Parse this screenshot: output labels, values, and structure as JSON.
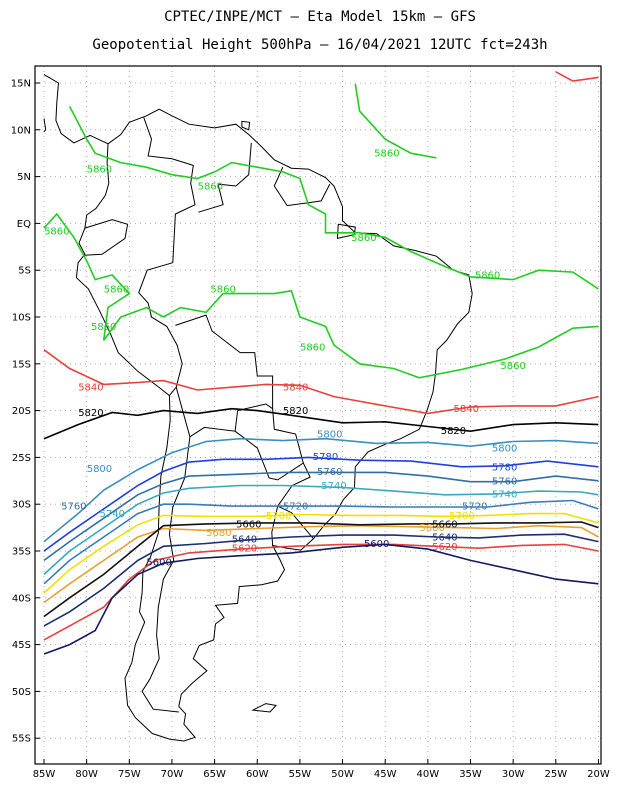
{
  "title_line1": "CPTEC/INPE/MCT –  Eta Model 15km – GFS",
  "title_line2": "Geopotential Height 500hPa – 16/04/2021 12UTC fct=243h",
  "lat_ticks": [
    "15N",
    "10N",
    "5N",
    "EQ",
    "5S",
    "10S",
    "15S",
    "20S",
    "25S",
    "30S",
    "35S",
    "40S",
    "45S",
    "50S",
    "55S"
  ],
  "lon_ticks": [
    "85W",
    "80W",
    "75W",
    "70W",
    "65W",
    "60W",
    "55W",
    "50W",
    "45W",
    "40W",
    "35W",
    "30W",
    "25W",
    "20W"
  ],
  "contours": [
    {
      "value": "5860",
      "color": "#22cc22"
    },
    {
      "value": "5840",
      "color": "#e8413c"
    },
    {
      "value": "5820",
      "color": "#000000"
    },
    {
      "value": "5800",
      "color": "#3a8fc0"
    },
    {
      "value": "5780",
      "color": "#1f3fe0"
    },
    {
      "value": "5760",
      "color": "#2f6fa8"
    },
    {
      "value": "5740",
      "color": "#38a8c0"
    },
    {
      "value": "5720",
      "color": "#3a7cb8"
    },
    {
      "value": "5700",
      "color": "#f0e000"
    },
    {
      "value": "5680",
      "color": "#e8a030"
    },
    {
      "value": "5660",
      "color": "#111111"
    },
    {
      "value": "5640",
      "color": "#1a2e70"
    },
    {
      "value": "5620",
      "color": "#e84040"
    },
    {
      "value": "5600",
      "color": "#101a60"
    }
  ],
  "contour_labels": [
    {
      "text": "5860",
      "color": "#22cc22",
      "lon": -44.8,
      "lat": 7.5
    },
    {
      "text": "5860",
      "color": "#22cc22",
      "lon": -78.5,
      "lat": 5.8
    },
    {
      "text": "5860",
      "color": "#22cc22",
      "lon": -65.5,
      "lat": 4.0
    },
    {
      "text": "5860",
      "color": "#22cc22",
      "lon": -83.5,
      "lat": -0.8
    },
    {
      "text": "5860",
      "color": "#22cc22",
      "lon": -47.5,
      "lat": -1.5
    },
    {
      "text": "5860",
      "color": "#22cc22",
      "lon": -33.0,
      "lat": -5.5
    },
    {
      "text": "5860",
      "color": "#22cc22",
      "lon": -76.5,
      "lat": -7.0
    },
    {
      "text": "5860",
      "color": "#22cc22",
      "lon": -64.0,
      "lat": -7.0
    },
    {
      "text": "5860",
      "color": "#22cc22",
      "lon": -78.0,
      "lat": -11.0
    },
    {
      "text": "5860",
      "color": "#22cc22",
      "lon": -53.5,
      "lat": -13.2
    },
    {
      "text": "5860",
      "color": "#22cc22",
      "lon": -30.0,
      "lat": -15.2
    },
    {
      "text": "5840",
      "color": "#e8413c",
      "lon": -79.5,
      "lat": -17.5
    },
    {
      "text": "5840",
      "color": "#e8413c",
      "lon": -55.5,
      "lat": -17.5
    },
    {
      "text": "5840",
      "color": "#e8413c",
      "lon": -35.5,
      "lat": -19.8
    },
    {
      "text": "5820",
      "color": "#000000",
      "lon": -79.5,
      "lat": -20.2
    },
    {
      "text": "5820",
      "color": "#000000",
      "lon": -55.5,
      "lat": -20.0
    },
    {
      "text": "5820",
      "color": "#000000",
      "lon": -37.0,
      "lat": -22.1
    },
    {
      "text": "5800",
      "color": "#3a8fc0",
      "lon": -51.5,
      "lat": -22.5
    },
    {
      "text": "5800",
      "color": "#3a8fc0",
      "lon": -78.5,
      "lat": -26.2
    },
    {
      "text": "5800",
      "color": "#3a8fc0",
      "lon": -31.0,
      "lat": -24.0
    },
    {
      "text": "5780",
      "color": "#1f3fe0",
      "lon": -52.0,
      "lat": -24.9
    },
    {
      "text": "5780",
      "color": "#1f3fe0",
      "lon": -31.0,
      "lat": -26.0
    },
    {
      "text": "5760",
      "color": "#2f6fa8",
      "lon": -51.5,
      "lat": -26.5
    },
    {
      "text": "5760",
      "color": "#2f6fa8",
      "lon": -81.5,
      "lat": -30.2
    },
    {
      "text": "5760",
      "color": "#2f6fa8",
      "lon": -31.0,
      "lat": -27.5
    },
    {
      "text": "5740",
      "color": "#38a8c0",
      "lon": -51.0,
      "lat": -28.0
    },
    {
      "text": "5740",
      "color": "#38a8c0",
      "lon": -31.0,
      "lat": -28.9
    },
    {
      "text": "5740",
      "color": "#38a8c0",
      "lon": -77.0,
      "lat": -31.0
    },
    {
      "text": "5720",
      "color": "#3a7cb8",
      "lon": -55.5,
      "lat": -30.2
    },
    {
      "text": "5720",
      "color": "#3a7cb8",
      "lon": -34.5,
      "lat": -30.2
    },
    {
      "text": "5700",
      "color": "#f0e000",
      "lon": -57.5,
      "lat": -31.2
    },
    {
      "text": "5700",
      "color": "#f0e000",
      "lon": -36.0,
      "lat": -31.2
    },
    {
      "text": "5680",
      "color": "#e8a030",
      "lon": -39.5,
      "lat": -32.5
    },
    {
      "text": "5680",
      "color": "#e8a030",
      "lon": -64.5,
      "lat": -33.0
    },
    {
      "text": "5660",
      "color": "#111111",
      "lon": -61.0,
      "lat": -32.1
    },
    {
      "text": "5660",
      "color": "#111111",
      "lon": -38.0,
      "lat": -32.1
    },
    {
      "text": "5640",
      "color": "#1a2e70",
      "lon": -61.5,
      "lat": -33.7
    },
    {
      "text": "5640",
      "color": "#1a2e70",
      "lon": -38.0,
      "lat": -33.5
    },
    {
      "text": "5620",
      "color": "#e84040",
      "lon": -61.5,
      "lat": -34.7
    },
    {
      "text": "5620",
      "color": "#e84040",
      "lon": -38.0,
      "lat": -34.5
    },
    {
      "text": "5600",
      "color": "#101a60",
      "lon": -46.0,
      "lat": -34.2
    },
    {
      "text": "5600",
      "color": "#101a60",
      "lon": -71.5,
      "lat": -36.2
    }
  ]
}
